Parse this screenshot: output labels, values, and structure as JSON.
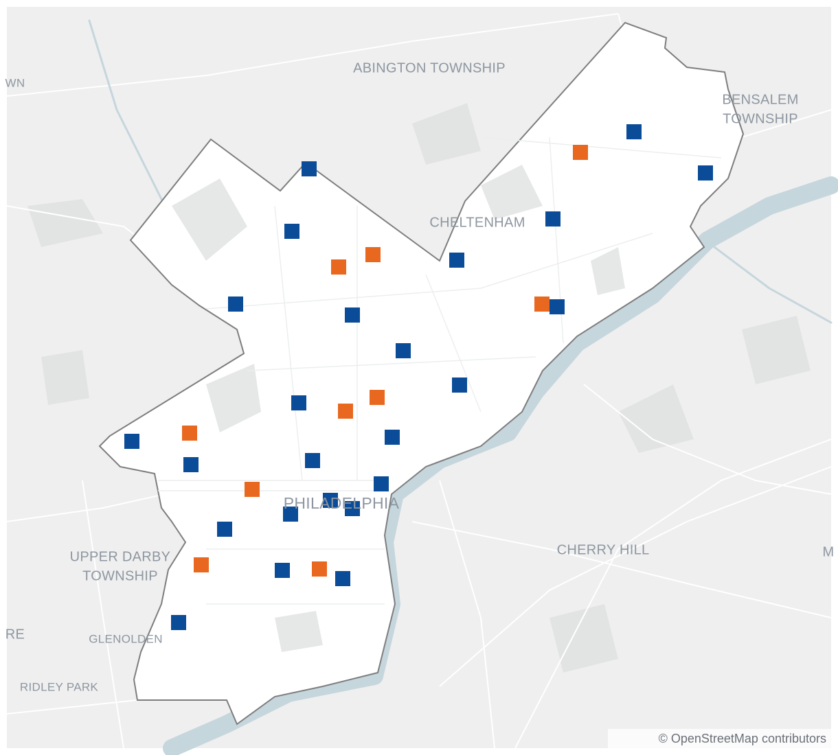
{
  "places": [
    {
      "lines": [
        "ABINGTON TOWNSHIP"
      ]
    },
    {
      "lines": [
        "BENSALEM",
        "TOWNSHIP"
      ]
    },
    {
      "lines": [
        "CHELTENHAM"
      ]
    },
    {
      "lines": [
        "PHILADELPHIA"
      ]
    },
    {
      "lines": [
        "CHERRY HILL"
      ]
    },
    {
      "lines": [
        "UPPER DARBY",
        "TOWNSHIP"
      ]
    },
    {
      "lines": [
        "GLENOLDEN"
      ]
    },
    {
      "lines": [
        "RIDLEY PARK"
      ]
    },
    {
      "lines": [
        "WN"
      ]
    },
    {
      "lines": [
        "RE"
      ]
    },
    {
      "lines": [
        "M"
      ]
    }
  ],
  "attribution": "© OpenStreetMap contributors"
}
